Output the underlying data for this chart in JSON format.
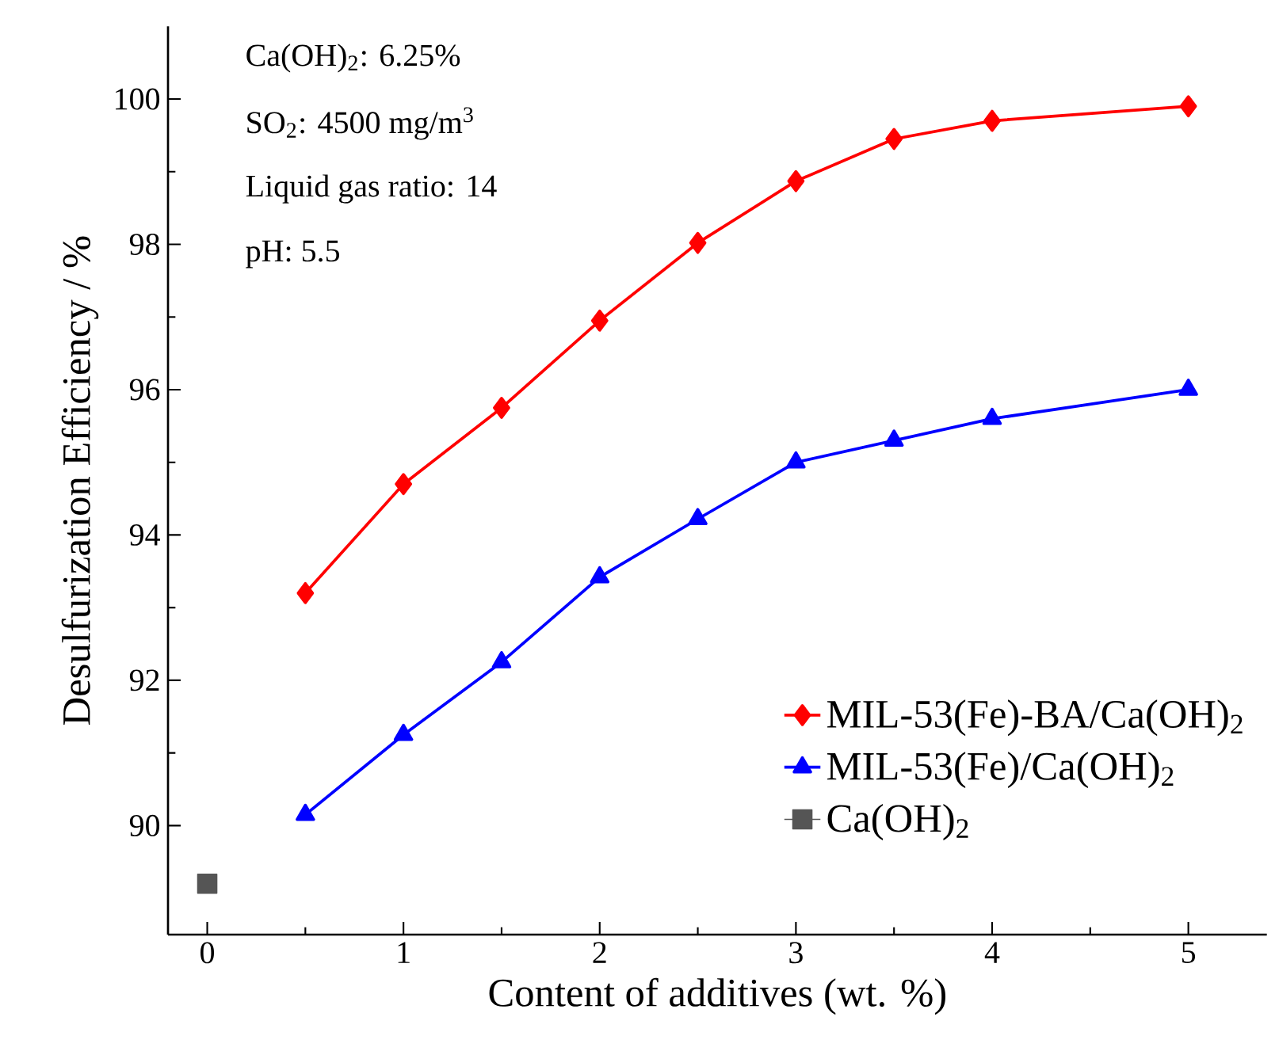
{
  "chart_data": {
    "type": "line",
    "xlabel": "Content of additives (wt. %)",
    "ylabel": "Desulfurization Efficiency / %",
    "xlim": [
      -0.2,
      5.4
    ],
    "xticks": [
      0,
      1,
      2,
      3,
      4,
      5
    ],
    "ylim": [
      88.5,
      101
    ],
    "yticks": [
      90,
      92,
      94,
      96,
      98,
      100
    ],
    "legend": "bottom right",
    "grid": false,
    "annotations": [
      "Ca(OH)$_{2}$: 6.25%",
      "SO$_{2}$: 4500 mg/m$^{3}$",
      "Liquid gas ratio: 14",
      "pH: 5.5"
    ],
    "series": [
      {
        "name": "MIL-53(Fe)-BA/Ca(OH)$_{2}$",
        "color": "#ff0000",
        "marker": "diamond",
        "x": [
          0.5,
          1,
          1.5,
          2,
          2.5,
          3,
          3.5,
          4,
          5
        ],
        "values": [
          93.2,
          94.7,
          95.75,
          96.95,
          98.02,
          98.87,
          99.45,
          99.7,
          99.9
        ]
      },
      {
        "name": "MIL-53(Fe)/Ca(OH)$_{2}$",
        "color": "#0000ff",
        "marker": "triangle",
        "x": [
          0.5,
          1,
          1.5,
          2,
          2.5,
          3,
          3.5,
          4,
          5
        ],
        "values": [
          90.15,
          91.25,
          92.25,
          93.42,
          94.22,
          95.0,
          95.3,
          95.6,
          96.0
        ]
      },
      {
        "name": "Ca(OH)$_{2}$",
        "color": "#555555",
        "marker": "square",
        "x": [
          0
        ],
        "values": [
          89.2
        ]
      }
    ]
  }
}
